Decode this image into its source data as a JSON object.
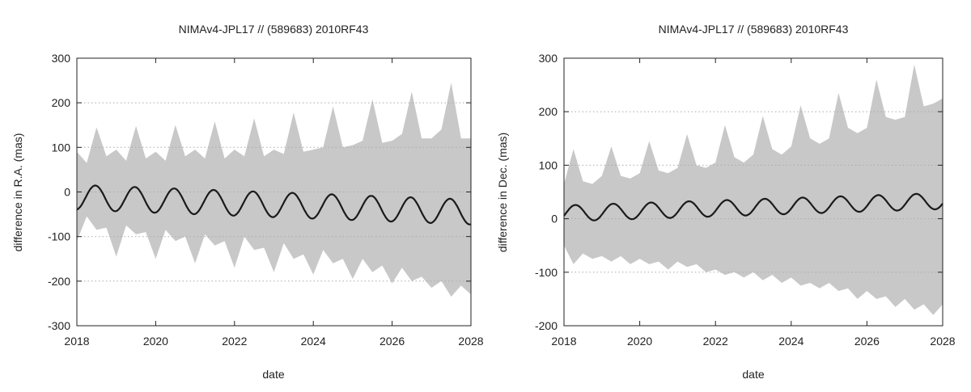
{
  "chart_data": [
    {
      "type": "area",
      "title": "NIMAv4-JPL17 // (589683) 2010RF43",
      "xlabel": "date",
      "ylabel": "difference in R.A. (mas)",
      "xlim": [
        2018,
        2028
      ],
      "ylim": [
        -300,
        300
      ],
      "x_ticks": [
        "2018",
        "2020",
        "2022",
        "2024",
        "2026",
        "2028"
      ],
      "y_ticks": [
        "-300",
        "-200",
        "-100",
        "0",
        "100",
        "200",
        "300"
      ],
      "grid": "horizontal dotted",
      "colors": {
        "band": "#c8c8c8",
        "line": "#1a1a1a",
        "grid": "#aaaaaa"
      },
      "series": [
        {
          "style": "band",
          "x": [
            2018.0,
            2018.25,
            2018.5,
            2018.75,
            2019.0,
            2019.25,
            2019.5,
            2019.75,
            2020.0,
            2020.25,
            2020.5,
            2020.75,
            2021.0,
            2021.25,
            2021.5,
            2021.75,
            2022.0,
            2022.25,
            2022.5,
            2022.75,
            2023.0,
            2023.25,
            2023.5,
            2023.75,
            2024.0,
            2024.25,
            2024.5,
            2024.75,
            2025.0,
            2025.25,
            2025.5,
            2025.75,
            2026.0,
            2026.25,
            2026.5,
            2026.75,
            2027.0,
            2027.25,
            2027.5,
            2027.75,
            2028.0
          ],
          "upper": [
            90,
            65,
            145,
            80,
            95,
            70,
            148,
            75,
            90,
            70,
            150,
            80,
            95,
            75,
            158,
            75,
            95,
            80,
            165,
            80,
            95,
            85,
            178,
            90,
            95,
            100,
            192,
            100,
            105,
            115,
            208,
            110,
            115,
            130,
            225,
            120,
            120,
            140,
            245,
            120,
            120
          ],
          "lower": [
            -110,
            -55,
            -85,
            -80,
            -145,
            -75,
            -95,
            -90,
            -150,
            -85,
            -110,
            -100,
            -160,
            -95,
            -120,
            -110,
            -170,
            -100,
            -130,
            -125,
            -180,
            -115,
            -150,
            -140,
            -185,
            -130,
            -160,
            -150,
            -195,
            -150,
            -180,
            -165,
            -205,
            -170,
            -200,
            -190,
            -215,
            -200,
            -235,
            -210,
            -230
          ]
        },
        {
          "style": "line",
          "offset": -12.0,
          "slope": -3.3,
          "amplitude": 28.0,
          "phase": 2018.22,
          "period": 1.0
        }
      ]
    },
    {
      "type": "area",
      "title": "NIMAv4-JPL17 // (589683) 2010RF43",
      "xlabel": "date",
      "ylabel": "difference in Dec. (mas)",
      "xlim": [
        2018,
        2028
      ],
      "ylim": [
        -200,
        300
      ],
      "x_ticks": [
        "2018",
        "2020",
        "2022",
        "2024",
        "2026",
        "2028"
      ],
      "y_ticks": [
        "-200",
        "-100",
        "0",
        "100",
        "200",
        "300"
      ],
      "grid": "horizontal dotted",
      "colors": {
        "band": "#c8c8c8",
        "line": "#1a1a1a",
        "grid": "#aaaaaa"
      },
      "series": [
        {
          "style": "band",
          "x": [
            2018.0,
            2018.25,
            2018.5,
            2018.75,
            2019.0,
            2019.25,
            2019.5,
            2019.75,
            2020.0,
            2020.25,
            2020.5,
            2020.75,
            2021.0,
            2021.25,
            2021.5,
            2021.75,
            2022.0,
            2022.25,
            2022.5,
            2022.75,
            2023.0,
            2023.25,
            2023.5,
            2023.75,
            2024.0,
            2024.25,
            2024.5,
            2024.75,
            2025.0,
            2025.25,
            2025.5,
            2025.75,
            2026.0,
            2026.25,
            2026.5,
            2026.75,
            2027.0,
            2027.25,
            2027.5,
            2027.75,
            2028.0
          ],
          "upper": [
            65,
            130,
            70,
            65,
            80,
            135,
            80,
            75,
            85,
            145,
            90,
            85,
            95,
            158,
            100,
            95,
            105,
            175,
            115,
            105,
            120,
            192,
            130,
            120,
            135,
            212,
            150,
            140,
            150,
            235,
            170,
            160,
            170,
            260,
            190,
            185,
            190,
            288,
            210,
            215,
            225
          ],
          "lower": [
            -50,
            -85,
            -65,
            -75,
            -70,
            -80,
            -70,
            -85,
            -75,
            -85,
            -80,
            -95,
            -80,
            -90,
            -85,
            -100,
            -95,
            -105,
            -100,
            -110,
            -100,
            -115,
            -105,
            -120,
            -110,
            -125,
            -120,
            -130,
            -120,
            -135,
            -130,
            -150,
            -135,
            -150,
            -145,
            -165,
            -150,
            -170,
            -160,
            -180,
            -160
          ]
        },
        {
          "style": "line",
          "offset": 10.0,
          "slope": 2.3,
          "amplitude": 15.0,
          "phase": 2018.05,
          "period": 1.0
        }
      ]
    }
  ]
}
